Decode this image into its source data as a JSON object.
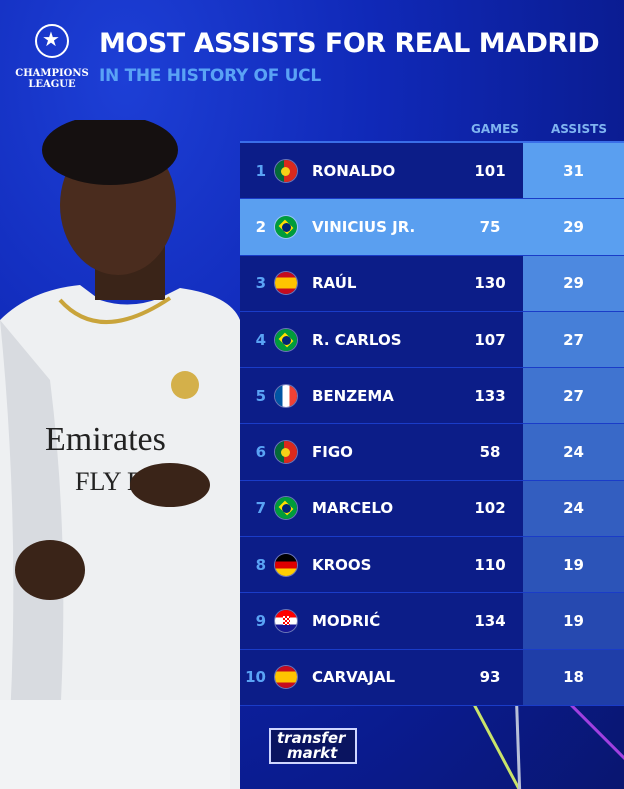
{
  "header": {
    "logo_text": "CHAMPIONS LEAGUE",
    "title": "MOST ASSISTS FOR REAL MADRID",
    "subtitle": "IN THE HISTORY OF UCL"
  },
  "footer": {
    "logo_line1": "transfer",
    "logo_line2": "markt"
  },
  "colors": {
    "row_bg": "#0c1d88",
    "highlight": "#5a9ff0",
    "assists_top": "#5a9ff0",
    "assists_bottom": "#1f3ea8",
    "accent_text": "#5aa3f5"
  },
  "chart_data": {
    "type": "table",
    "columns": [
      "GAMES",
      "ASSISTS"
    ],
    "rows": [
      {
        "rank": "1",
        "flag": "portugal",
        "player": "RONALDO",
        "games": "101",
        "assists": "31"
      },
      {
        "rank": "2",
        "flag": "brazil",
        "player": "VINICIUS JR.",
        "games": "75",
        "assists": "29",
        "highlighted": true
      },
      {
        "rank": "3",
        "flag": "spain",
        "player": "RAÚL",
        "games": "130",
        "assists": "29"
      },
      {
        "rank": "4",
        "flag": "brazil",
        "player": "R. CARLOS",
        "games": "107",
        "assists": "27"
      },
      {
        "rank": "5",
        "flag": "france",
        "player": "BENZEMA",
        "games": "133",
        "assists": "27"
      },
      {
        "rank": "6",
        "flag": "portugal",
        "player": "FIGO",
        "games": "58",
        "assists": "24"
      },
      {
        "rank": "7",
        "flag": "brazil",
        "player": "MARCELO",
        "games": "102",
        "assists": "24"
      },
      {
        "rank": "8",
        "flag": "germany",
        "player": "KROOS",
        "games": "110",
        "assists": "19"
      },
      {
        "rank": "9",
        "flag": "croatia",
        "player": "MODRIĆ",
        "games": "134",
        "assists": "19"
      },
      {
        "rank": "10",
        "flag": "spain",
        "player": "CARVAJAL",
        "games": "93",
        "assists": "18"
      }
    ]
  }
}
